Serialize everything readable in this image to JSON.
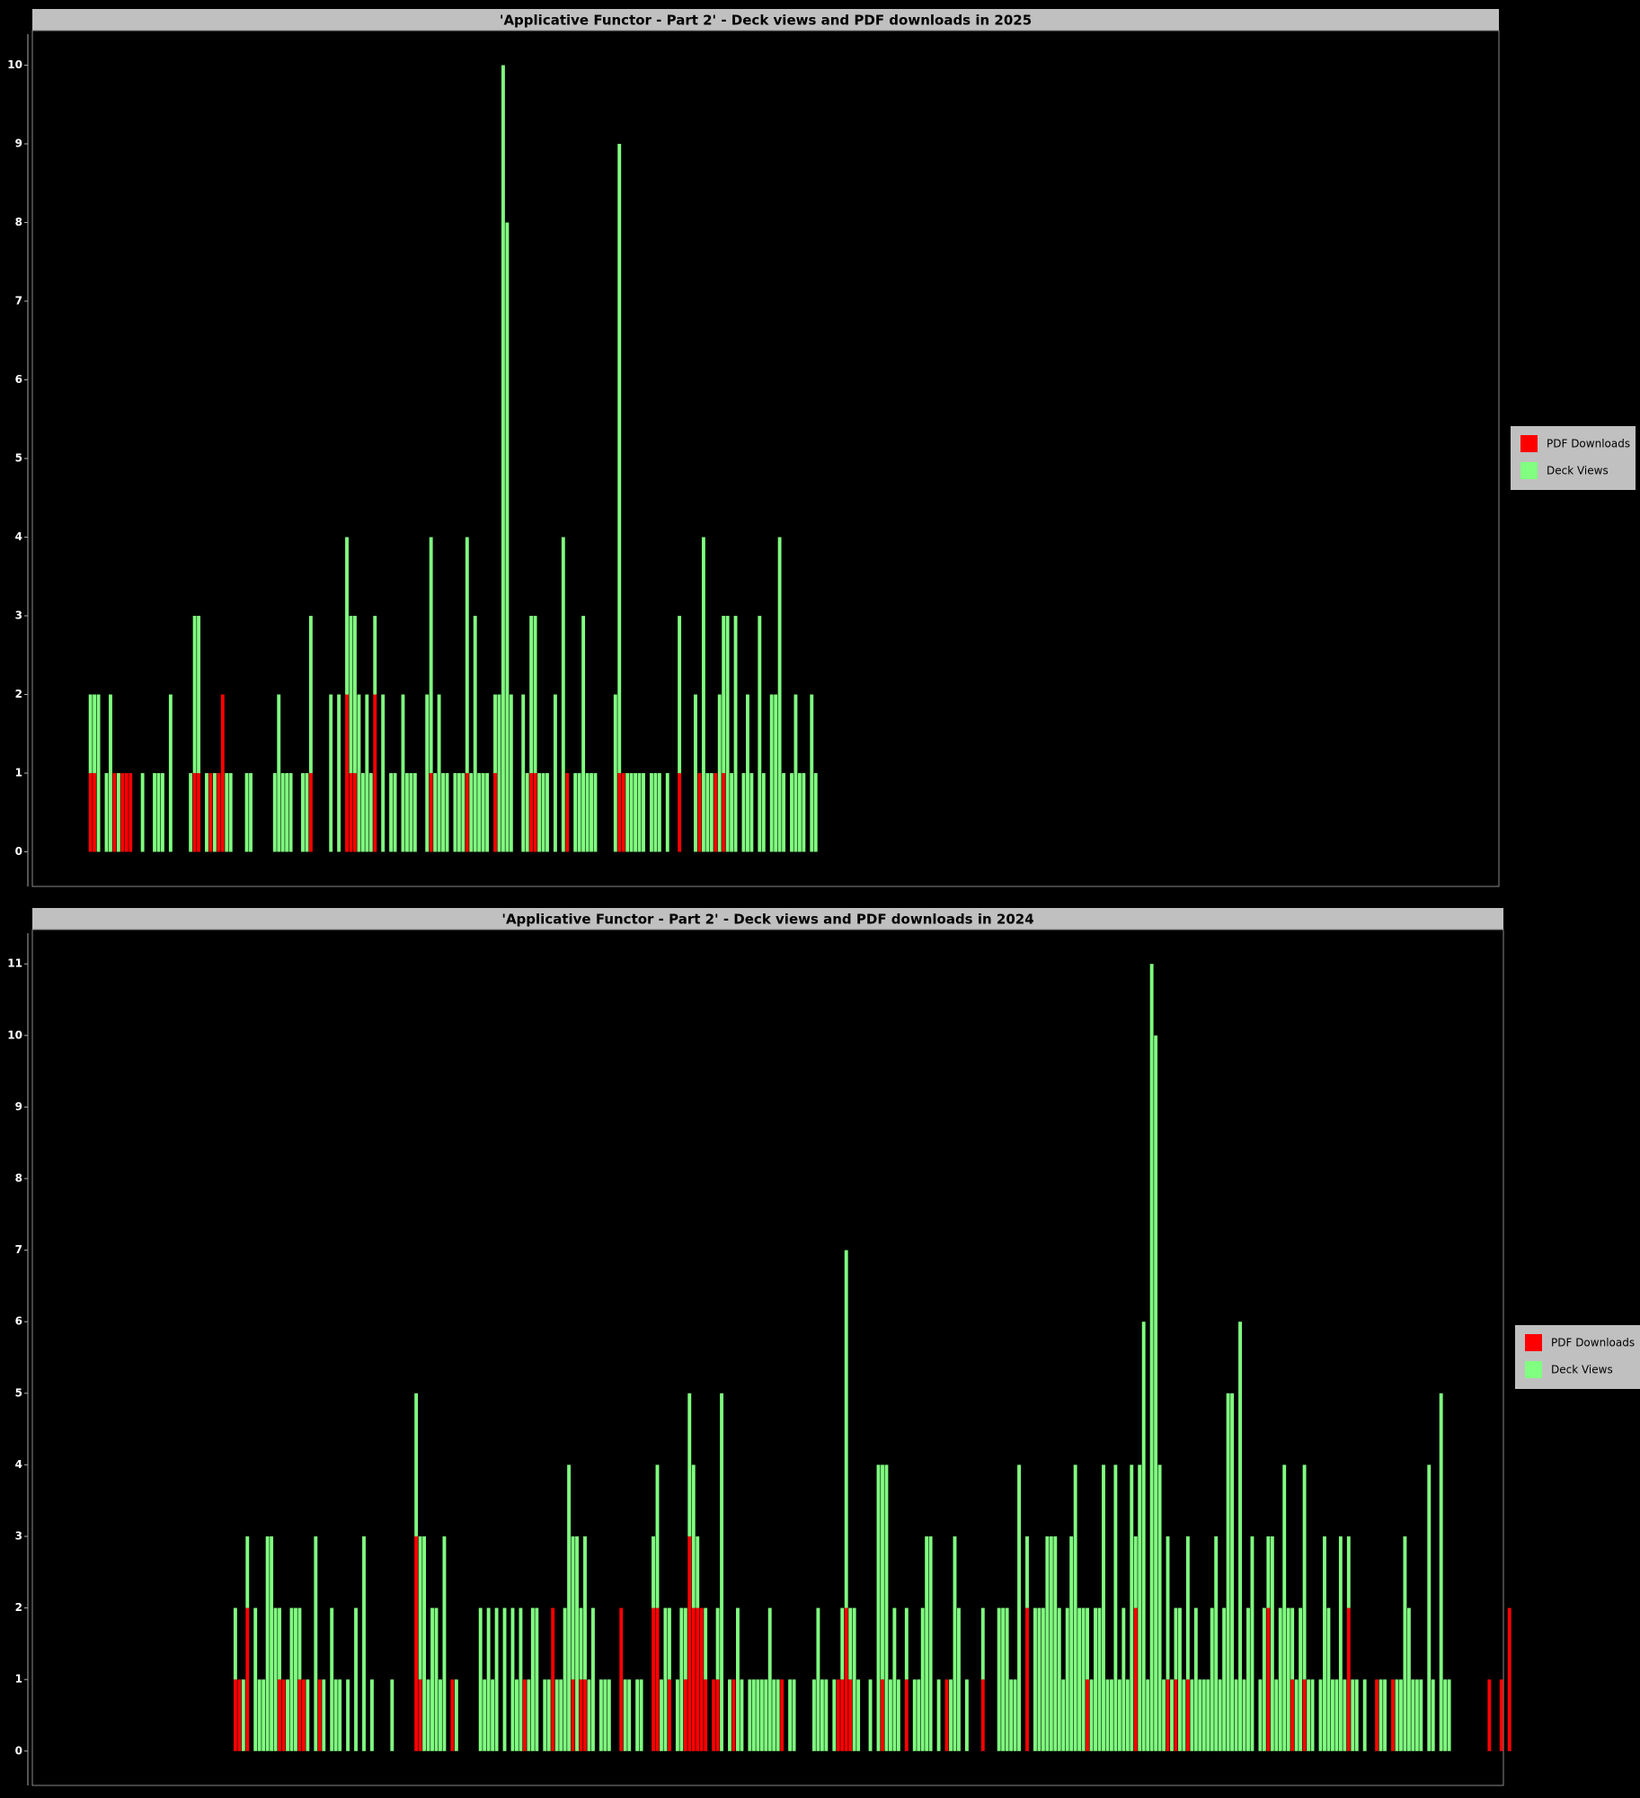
{
  "chart_data": [
    {
      "type": "bar",
      "stacked": true,
      "title": "'Applicative Functor - Part 2' - Deck views and PDF downloads in 2025",
      "ylim": [
        -0.44,
        10.44
      ],
      "yticks": [
        0,
        1,
        2,
        3,
        4,
        5,
        6,
        7,
        8,
        9,
        10
      ],
      "legend": "right",
      "series": [
        {
          "name": "PDF Downloads",
          "color": "#ff0000",
          "values": [
            0,
            0,
            0,
            0,
            0,
            0,
            0,
            0,
            0,
            0,
            0,
            0,
            0,
            0,
            1,
            1,
            0,
            0,
            0,
            0,
            1,
            0,
            1,
            1,
            1,
            0,
            0,
            0,
            0,
            0,
            0,
            0,
            0,
            0,
            0,
            0,
            0,
            0,
            0,
            0,
            1,
            1,
            0,
            0,
            1,
            0,
            1,
            2,
            0,
            0,
            0,
            0,
            0,
            0,
            0,
            0,
            0,
            0,
            0,
            0,
            0,
            0,
            0,
            0,
            0,
            0,
            0,
            0,
            0,
            1,
            0,
            0,
            0,
            0,
            0,
            0,
            0,
            0,
            2,
            1,
            1,
            0,
            0,
            0,
            0,
            2,
            0,
            0,
            0,
            0,
            0,
            0,
            0,
            0,
            0,
            0,
            0,
            0,
            0,
            1,
            0,
            0,
            0,
            0,
            0,
            0,
            0,
            0,
            1,
            0,
            0,
            0,
            0,
            0,
            0,
            1,
            0,
            0,
            0,
            0,
            0,
            0,
            0,
            0,
            1,
            1,
            0,
            0,
            0,
            0,
            0,
            0,
            0,
            1,
            0,
            0,
            0,
            0,
            0,
            0,
            0,
            0,
            0,
            0,
            0,
            0,
            1,
            1,
            0,
            0,
            0,
            0,
            0,
            0,
            0,
            0,
            0,
            0,
            0,
            0,
            0,
            1,
            0,
            0,
            0,
            0,
            1,
            0,
            0,
            0,
            1,
            0,
            1,
            0,
            0,
            0,
            0,
            0,
            0,
            0,
            0,
            0,
            0,
            0,
            0,
            0,
            0,
            0,
            0,
            0,
            0,
            0,
            0,
            0,
            0,
            0
          ]
        },
        {
          "name": "Deck Views",
          "color": "#80ff80",
          "values": [
            0,
            0,
            0,
            0,
            0,
            0,
            0,
            0,
            0,
            0,
            0,
            0,
            0,
            0,
            1,
            1,
            2,
            0,
            1,
            2,
            0,
            1,
            0,
            0,
            0,
            0,
            0,
            1,
            0,
            0,
            1,
            1,
            1,
            0,
            2,
            0,
            0,
            0,
            0,
            1,
            2,
            2,
            0,
            1,
            0,
            1,
            0,
            0,
            1,
            1,
            0,
            0,
            0,
            1,
            1,
            0,
            0,
            0,
            0,
            0,
            1,
            2,
            1,
            1,
            1,
            0,
            0,
            1,
            1,
            2,
            0,
            0,
            0,
            0,
            2,
            0,
            2,
            0,
            2,
            2,
            2,
            2,
            1,
            2,
            1,
            1,
            0,
            2,
            0,
            1,
            1,
            0,
            2,
            1,
            1,
            1,
            0,
            0,
            2,
            3,
            1,
            2,
            1,
            1,
            0,
            1,
            1,
            1,
            3,
            1,
            3,
            1,
            1,
            1,
            0,
            1,
            2,
            10,
            8,
            2,
            0,
            0,
            2,
            1,
            2,
            2,
            1,
            1,
            1,
            0,
            2,
            0,
            4,
            0,
            0,
            1,
            1,
            3,
            1,
            1,
            1,
            0,
            0,
            0,
            0,
            2,
            8,
            0,
            1,
            1,
            1,
            1,
            1,
            0,
            1,
            1,
            1,
            0,
            1,
            0,
            0,
            2,
            0,
            0,
            0,
            2,
            0,
            4,
            1,
            1,
            0,
            2,
            2,
            3,
            1,
            3,
            0,
            1,
            2,
            1,
            0,
            3,
            1,
            0,
            2,
            2,
            4,
            1,
            0,
            1,
            2,
            1,
            1,
            0,
            2,
            1
          ]
        }
      ]
    },
    {
      "type": "bar",
      "stacked": true,
      "title": "'Applicative Functor - Part 2' - Deck views and PDF downloads in 2024",
      "ylim": [
        -0.48,
        11.48
      ],
      "yticks": [
        0,
        1,
        2,
        3,
        4,
        5,
        6,
        7,
        8,
        9,
        10,
        11
      ],
      "legend": "right",
      "series": [
        {
          "name": "PDF Downloads",
          "color": "#ff0000",
          "values": [
            0,
            0,
            0,
            0,
            0,
            0,
            0,
            0,
            0,
            0,
            0,
            0,
            0,
            0,
            0,
            0,
            0,
            0,
            0,
            0,
            0,
            0,
            0,
            0,
            0,
            0,
            0,
            0,
            0,
            0,
            0,
            0,
            0,
            0,
            0,
            0,
            0,
            0,
            0,
            0,
            0,
            0,
            0,
            0,
            0,
            0,
            0,
            0,
            0,
            0,
            1,
            1,
            0,
            2,
            0,
            0,
            0,
            0,
            0,
            0,
            0,
            1,
            1,
            0,
            0,
            0,
            1,
            1,
            0,
            0,
            0,
            1,
            0,
            0,
            0,
            0,
            0,
            0,
            0,
            0,
            0,
            0,
            0,
            0,
            0,
            0,
            0,
            0,
            0,
            0,
            0,
            0,
            0,
            0,
            0,
            3,
            1,
            0,
            0,
            0,
            0,
            0,
            0,
            0,
            1,
            0,
            0,
            0,
            0,
            0,
            0,
            0,
            0,
            0,
            0,
            0,
            0,
            0,
            0,
            0,
            0,
            0,
            1,
            0,
            0,
            0,
            0,
            0,
            0,
            2,
            0,
            0,
            0,
            0,
            1,
            0,
            1,
            1,
            0,
            0,
            0,
            0,
            0,
            0,
            0,
            0,
            2,
            0,
            0,
            0,
            0,
            0,
            0,
            0,
            2,
            2,
            0,
            0,
            1,
            0,
            0,
            0,
            1,
            3,
            2,
            2,
            2,
            1,
            0,
            1,
            1,
            0,
            0,
            0,
            1,
            0,
            0,
            0,
            0,
            0,
            0,
            0,
            0,
            0,
            0,
            0,
            1,
            0,
            0,
            0,
            0,
            0,
            0,
            0,
            0,
            0,
            0,
            0,
            0,
            0,
            1,
            1,
            2,
            1,
            0,
            0,
            0,
            0,
            0,
            0,
            0,
            1,
            0,
            0,
            0,
            0,
            0,
            1,
            0,
            0,
            0,
            0,
            0,
            0,
            0,
            0,
            0,
            1,
            0,
            0,
            0,
            0,
            0,
            0,
            0,
            0,
            1,
            0,
            0,
            0,
            0,
            0,
            0,
            0,
            0,
            0,
            0,
            2,
            0,
            0,
            0,
            0,
            0,
            0,
            0,
            0,
            0,
            0,
            0,
            0,
            0,
            0,
            1,
            0,
            0,
            0,
            0,
            0,
            0,
            0,
            0,
            0,
            0,
            0,
            2,
            0,
            0,
            0,
            0,
            0,
            0,
            0,
            1,
            0,
            1,
            0,
            0,
            1,
            0,
            0,
            0,
            0,
            0,
            0,
            0,
            0,
            0,
            0,
            0,
            0,
            0,
            0,
            0,
            0,
            0,
            0,
            0,
            2,
            0,
            0,
            0,
            0,
            0,
            1,
            0,
            0,
            1,
            0,
            0,
            0,
            0,
            0,
            0,
            0,
            0,
            0,
            0,
            2,
            0,
            0,
            0,
            0,
            0,
            0,
            1,
            0,
            0,
            0,
            1,
            0,
            0,
            0,
            0,
            0,
            0,
            0,
            0,
            0,
            0,
            0,
            0,
            0,
            0,
            0,
            0,
            0,
            0,
            0,
            0,
            0,
            0,
            0,
            1,
            0,
            0,
            1,
            0,
            2,
            0,
            0,
            0,
            0,
            0,
            0,
            0,
            0,
            0,
            0,
            0,
            0,
            0,
            0
          ]
        },
        {
          "name": "Deck Views",
          "color": "#80ff80",
          "values": [
            0,
            0,
            0,
            0,
            0,
            0,
            0,
            0,
            0,
            0,
            0,
            0,
            0,
            0,
            0,
            0,
            0,
            0,
            0,
            0,
            0,
            0,
            0,
            0,
            0,
            0,
            0,
            0,
            0,
            0,
            0,
            0,
            0,
            0,
            0,
            0,
            0,
            0,
            0,
            0,
            0,
            0,
            0,
            0,
            0,
            0,
            0,
            0,
            0,
            0,
            1,
            0,
            1,
            1,
            0,
            2,
            1,
            1,
            3,
            3,
            2,
            1,
            0,
            1,
            2,
            2,
            1,
            0,
            1,
            0,
            3,
            0,
            1,
            0,
            2,
            1,
            1,
            0,
            1,
            0,
            2,
            0,
            3,
            0,
            1,
            0,
            0,
            0,
            0,
            1,
            0,
            0,
            0,
            0,
            0,
            2,
            2,
            3,
            1,
            2,
            2,
            1,
            3,
            0,
            0,
            1,
            0,
            0,
            0,
            0,
            0,
            2,
            1,
            2,
            1,
            2,
            0,
            2,
            0,
            2,
            1,
            2,
            0,
            1,
            2,
            2,
            0,
            1,
            1,
            0,
            1,
            1,
            2,
            4,
            2,
            3,
            1,
            2,
            1,
            2,
            0,
            1,
            1,
            1,
            0,
            0,
            0,
            1,
            1,
            0,
            1,
            1,
            0,
            0,
            1,
            2,
            1,
            2,
            1,
            0,
            1,
            2,
            1,
            2,
            2,
            1,
            0,
            1,
            0,
            0,
            1,
            5,
            0,
            1,
            0,
            2,
            1,
            0,
            1,
            1,
            1,
            1,
            1,
            2,
            1,
            1,
            0,
            0,
            1,
            1,
            0,
            0,
            0,
            0,
            1,
            2,
            1,
            1,
            0,
            1,
            0,
            1,
            5,
            1,
            2,
            1,
            0,
            0,
            1,
            0,
            4,
            3,
            4,
            1,
            2,
            1,
            0,
            1,
            0,
            1,
            1,
            2,
            3,
            3,
            0,
            1,
            0,
            0,
            1,
            3,
            2,
            0,
            1,
            0,
            0,
            0,
            1,
            0,
            0,
            0,
            2,
            2,
            2,
            1,
            1,
            4,
            0,
            1,
            0,
            2,
            2,
            2,
            3,
            3,
            3,
            2,
            1,
            2,
            3,
            4,
            2,
            2,
            1,
            1,
            2,
            2,
            4,
            1,
            1,
            4,
            1,
            2,
            1,
            4,
            1,
            4,
            6,
            1,
            11,
            10,
            4,
            1,
            2,
            1,
            1,
            2,
            1,
            2,
            1,
            2,
            1,
            1,
            1,
            2,
            3,
            1,
            2,
            5,
            5,
            1,
            6,
            1,
            2,
            3,
            0,
            1,
            2,
            1,
            3,
            1,
            2,
            4,
            2,
            1,
            1,
            2,
            3,
            1,
            1,
            0,
            1,
            3,
            2,
            1,
            1,
            3,
            1,
            1,
            1,
            1,
            0,
            1,
            0,
            0,
            0,
            1,
            1,
            0,
            0,
            1,
            1,
            3,
            2,
            1,
            1,
            1,
            0,
            4,
            1,
            0,
            5,
            1,
            1,
            0,
            0,
            0,
            0,
            0,
            0,
            0,
            0,
            0,
            0,
            0,
            0,
            0
          ]
        }
      ]
    }
  ]
}
